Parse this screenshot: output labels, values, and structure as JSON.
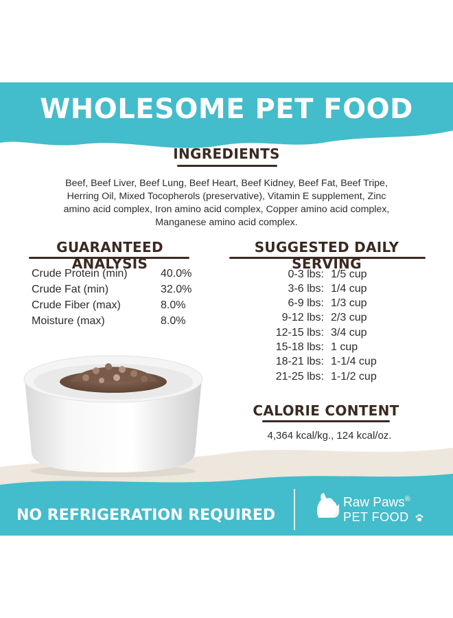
{
  "banner": {
    "title": "WHOLESOME PET FOOD"
  },
  "ingredients": {
    "title": "INGREDIENTS",
    "lines": [
      "Beef, Beef Liver, Beef Lung, Beef Heart, Beef Kidney, Beef Fat, Beef Tripe,",
      "Herring Oil, Mixed Tocopherols (preservative), Vitamin E supplement, Zinc",
      "amino acid complex, Iron amino acid complex, Copper amino acid complex,",
      "Manganese amino acid complex."
    ]
  },
  "analysis": {
    "title": "GUARANTEED ANALYSIS",
    "rows": [
      {
        "label": "Crude Protein (min)",
        "value": "40.0%"
      },
      {
        "label": "Crude Fat (min)",
        "value": "32.0%"
      },
      {
        "label": "Crude Fiber (max)",
        "value": "8.0%"
      },
      {
        "label": "Moisture (max)",
        "value": "8.0%"
      }
    ]
  },
  "serving": {
    "title": "SUGGESTED DAILY SERVING",
    "rows": [
      {
        "weight": "0-3 lbs:",
        "amount": "1/5 cup"
      },
      {
        "weight": "3-6 lbs:",
        "amount": "1/4 cup"
      },
      {
        "weight": "6-9 lbs:",
        "amount": "1/3 cup"
      },
      {
        "weight": "9-12 lbs:",
        "amount": "2/3 cup"
      },
      {
        "weight": "12-15 lbs:",
        "amount": "3/4 cup"
      },
      {
        "weight": "15-18 lbs:",
        "amount": "1 cup"
      },
      {
        "weight": "18-21 lbs:",
        "amount": "1-1/4 cup"
      },
      {
        "weight": "21-25 lbs:",
        "amount": "1-1/2 cup"
      }
    ]
  },
  "calorie": {
    "title": "CALORIE CONTENT",
    "text": "4,364 kcal/kg., 124 kcal/oz."
  },
  "footer": {
    "title": "NO REFRIGERATION REQUIRED",
    "brand_name": "Raw Paws",
    "brand_mark": "®",
    "brand_sub": "PET FOOD"
  },
  "colors": {
    "teal": "#43bccb",
    "cream": "#ede7dd",
    "heading_brown": "#3b2a22"
  },
  "icons": [
    "dog-cat-logo-icon",
    "paw-icon"
  ]
}
